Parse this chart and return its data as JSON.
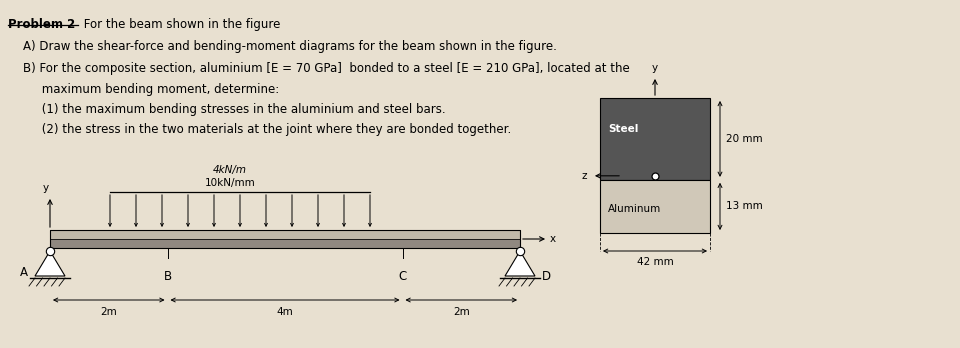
{
  "title": "Problem 2",
  "title_text": " For the beam shown in the figure",
  "part_a": "A) Draw the shear-force and bending-moment diagrams for the beam shown in the figure.",
  "part_b": "B) For the composite section, aluminium [E = 70 GPa]  bonded to a steel [E = 210 GPa], located at the",
  "part_b2": "     maximum bending moment, determine:",
  "part_b_1": "     (1) the maximum bending stresses in the aluminium and steel bars.",
  "part_b_2": "     (2) the stress in the two materials at the joint where they are bonded together.",
  "load_label": "4kN/m",
  "load_label2": "10kN/mm",
  "dim_AB": "2m",
  "dim_BC": "4m",
  "dim_CD": "2m",
  "label_A": "A",
  "label_B": "B",
  "label_C": "C",
  "label_D": "D",
  "label_x": "x",
  "label_y": "y",
  "label_y2": "y",
  "label_z": "z",
  "steel_label": "Steel",
  "alum_label": "Aluminum",
  "dim_width": "42 mm",
  "dim_steel_h": "20 mm",
  "dim_alum_h": "13 mm",
  "bg_color": "#e8e0d0",
  "steel_color": "#555555",
  "alum_color": "#d0c8b8",
  "beam_color_top": "#c0b8a8",
  "beam_color_bot": "#908880",
  "text_color": "#000000"
}
